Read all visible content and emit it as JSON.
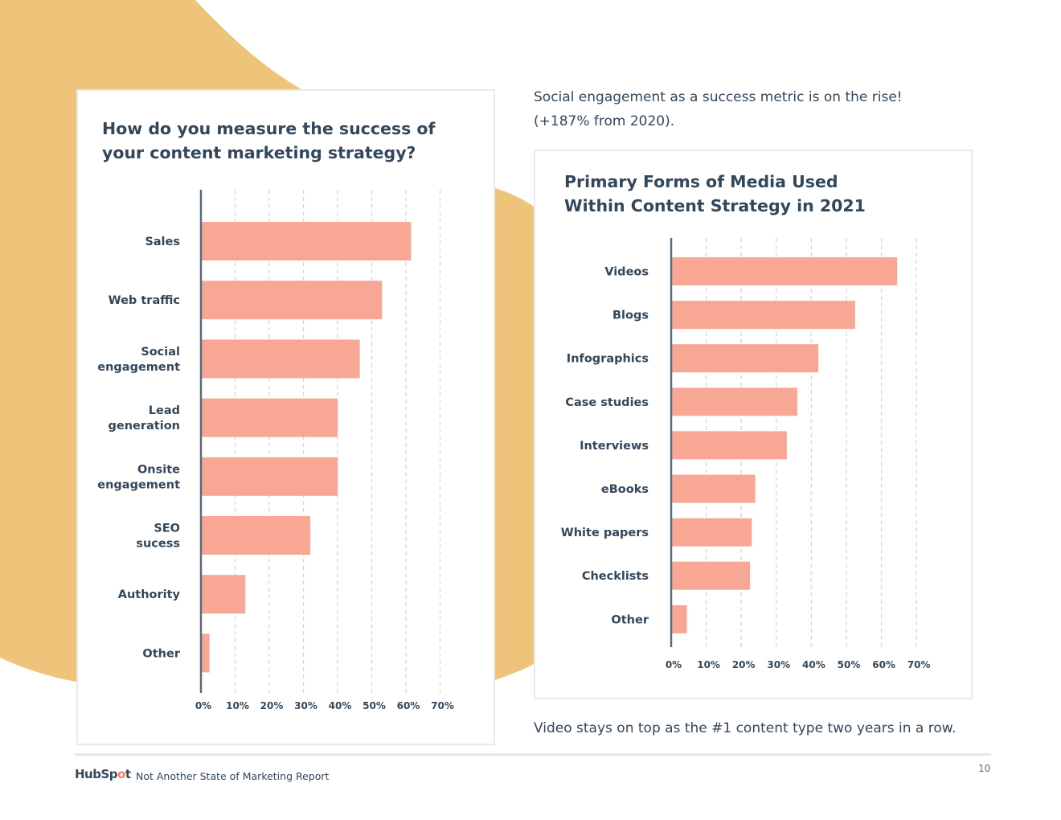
{
  "notes": {
    "top_line1": "Social engagement as a success metric is on the rise!",
    "top_line2": "(+187% from 2020).",
    "bottom": "Video stays on top as the #1 content type two years in a row."
  },
  "footer": {
    "logo_pre": "HubSp",
    "logo_dot": "o",
    "logo_post": "t",
    "report_title": "Not Another State of Marketing Report",
    "page_number": "10"
  },
  "colors": {
    "bar": "#f7a793",
    "axis": "#5a6b7d",
    "grid": "#d4d8de",
    "decor": "#eec47a",
    "text": "#33475b"
  },
  "chart_data": [
    {
      "type": "bar",
      "orientation": "horizontal",
      "title_line1": "How do you measure the success of",
      "title_line2": "your content marketing strategy?",
      "categories": [
        [
          "Sales"
        ],
        [
          "Web traffic"
        ],
        [
          "Social",
          "engagement"
        ],
        [
          "Lead",
          "generation"
        ],
        [
          "Onsite",
          "engagement"
        ],
        [
          "SEO",
          "sucess"
        ],
        [
          "Authority"
        ],
        [
          "Other"
        ]
      ],
      "values": [
        61.5,
        53,
        46.5,
        40,
        40,
        32,
        13,
        2.5
      ],
      "ticks": [
        "0%",
        "10%",
        "20%",
        "30%",
        "40%",
        "50%",
        "60%",
        "70%"
      ],
      "xlim": [
        0,
        70
      ],
      "grid": true
    },
    {
      "type": "bar",
      "orientation": "horizontal",
      "title_line1": "Primary Forms of Media Used",
      "title_line2": "Within Content Strategy in 2021",
      "categories": [
        [
          "Videos"
        ],
        [
          "Blogs"
        ],
        [
          "Infographics"
        ],
        [
          "Case studies"
        ],
        [
          "Interviews"
        ],
        [
          "eBooks"
        ],
        [
          "White papers"
        ],
        [
          "Checklists"
        ],
        [
          "Other"
        ]
      ],
      "values": [
        64.5,
        52.5,
        42,
        36,
        33,
        24,
        23,
        22.5,
        4.5
      ],
      "ticks": [
        "0%",
        "10%",
        "20%",
        "30%",
        "40%",
        "50%",
        "60%",
        "70%"
      ],
      "xlim": [
        0,
        70
      ],
      "grid": true
    }
  ]
}
